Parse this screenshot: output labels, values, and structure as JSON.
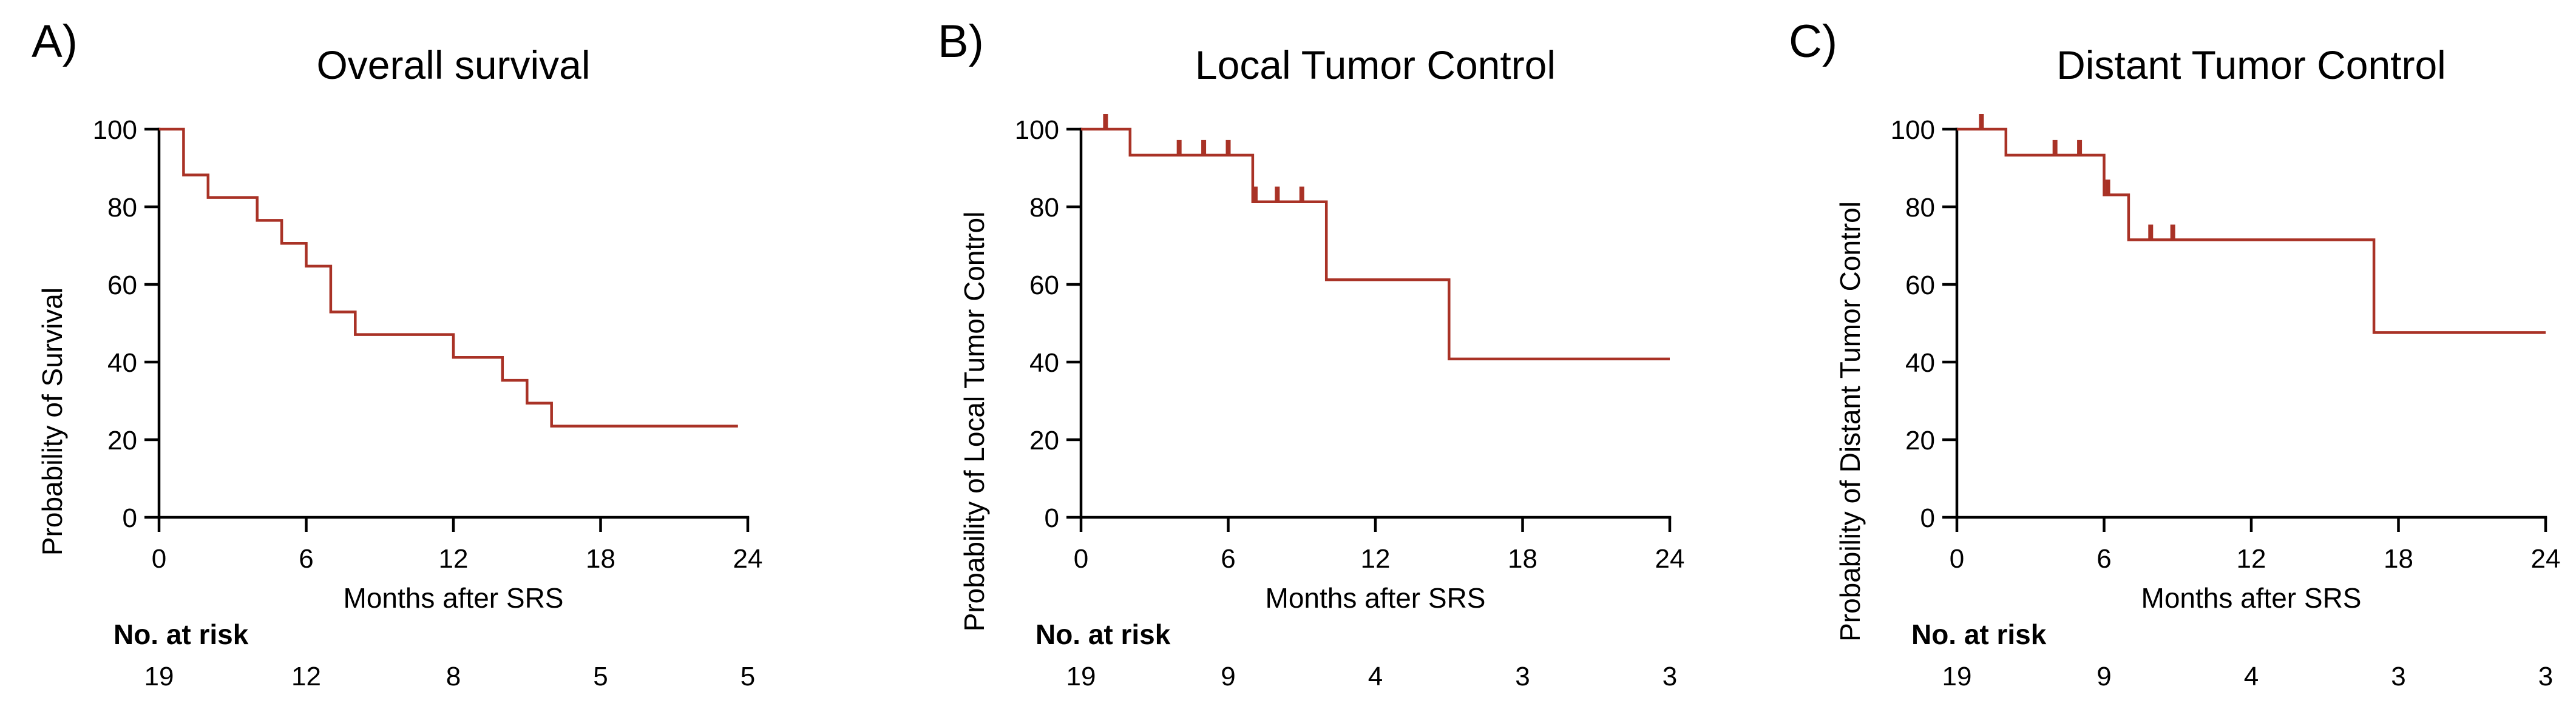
{
  "figure": {
    "description": "Three Kaplan-Meier curves after SRS",
    "curve_color": "#a93226",
    "axis_color": "#000000"
  },
  "chart_data": [
    {
      "type": "line",
      "subtype": "kaplan-meier-step",
      "panel_label": "A)",
      "title": "Overall survival",
      "xlabel": "Months after SRS",
      "ylabel": "Probability of Survival",
      "xlim": [
        0,
        24
      ],
      "ylim": [
        0,
        100
      ],
      "xticks": [
        0,
        6,
        12,
        18,
        24
      ],
      "yticks": [
        0,
        20,
        40,
        60,
        80,
        100
      ],
      "grid": false,
      "legend": "none",
      "series": [
        {
          "name": "Overall survival",
          "color": "#a93226",
          "step_vertices": [
            [
              0,
              100
            ],
            [
              1,
              100
            ],
            [
              1,
              88.2
            ],
            [
              2,
              88.2
            ],
            [
              2,
              82.4
            ],
            [
              4,
              82.4
            ],
            [
              4,
              76.5
            ],
            [
              5,
              76.5
            ],
            [
              5,
              70.6
            ],
            [
              6,
              70.6
            ],
            [
              6,
              64.7
            ],
            [
              7,
              64.7
            ],
            [
              7,
              52.9
            ],
            [
              8,
              52.9
            ],
            [
              8,
              47.1
            ],
            [
              12,
              47.1
            ],
            [
              12,
              41.2
            ],
            [
              14,
              41.2
            ],
            [
              14,
              35.3
            ],
            [
              15,
              35.3
            ],
            [
              15,
              29.4
            ],
            [
              16,
              29.4
            ],
            [
              16,
              23.5
            ],
            [
              23.6,
              23.5
            ]
          ],
          "censor_marks": []
        }
      ],
      "risk_table": {
        "label": "No. at risk",
        "times": [
          0,
          6,
          12,
          18,
          24
        ],
        "counts": [
          19,
          12,
          8,
          5,
          5
        ]
      }
    },
    {
      "type": "line",
      "subtype": "kaplan-meier-step",
      "panel_label": "B)",
      "title": "Local Tumor Control",
      "xlabel": "Months after SRS",
      "ylabel": "Probability of Local Tumor Control",
      "xlim": [
        0,
        24
      ],
      "ylim": [
        0,
        100
      ],
      "xticks": [
        0,
        6,
        12,
        18,
        24
      ],
      "yticks": [
        0,
        20,
        40,
        60,
        80,
        100
      ],
      "grid": false,
      "legend": "none",
      "series": [
        {
          "name": "Local tumor control",
          "color": "#a93226",
          "step_vertices": [
            [
              0,
              100
            ],
            [
              2,
              100
            ],
            [
              2,
              93.3
            ],
            [
              7,
              93.3
            ],
            [
              7,
              81.3
            ],
            [
              10,
              81.3
            ],
            [
              10,
              61.2
            ],
            [
              15,
              61.2
            ],
            [
              15,
              40.8
            ],
            [
              24,
              40.8
            ]
          ],
          "censor_marks": [
            [
              1,
              100
            ],
            [
              4,
              93.3
            ],
            [
              5,
              93.3
            ],
            [
              6,
              93.3
            ],
            [
              7.1,
              81.3
            ],
            [
              8,
              81.3
            ],
            [
              9,
              81.3
            ]
          ]
        }
      ],
      "risk_table": {
        "label": "No. at risk",
        "times": [
          0,
          6,
          12,
          18,
          24
        ],
        "counts": [
          19,
          9,
          4,
          3,
          3
        ]
      }
    },
    {
      "type": "line",
      "subtype": "kaplan-meier-step",
      "panel_label": "C)",
      "title": "Distant Tumor Control",
      "xlabel": "Months after SRS",
      "ylabel": "Probability of Distant Tumor Control",
      "xlim": [
        0,
        24
      ],
      "ylim": [
        0,
        100
      ],
      "xticks": [
        0,
        6,
        12,
        18,
        24
      ],
      "yticks": [
        0,
        20,
        40,
        60,
        80,
        100
      ],
      "grid": false,
      "legend": "none",
      "series": [
        {
          "name": "Distant tumor control",
          "color": "#a93226",
          "step_vertices": [
            [
              0,
              100
            ],
            [
              2,
              100
            ],
            [
              2,
              93.3
            ],
            [
              6,
              93.3
            ],
            [
              6,
              83.1
            ],
            [
              7,
              83.1
            ],
            [
              7,
              71.5
            ],
            [
              17,
              71.5
            ],
            [
              17,
              47.6
            ],
            [
              24,
              47.6
            ]
          ],
          "censor_marks": [
            [
              1,
              100
            ],
            [
              4,
              93.3
            ],
            [
              5,
              93.3
            ],
            [
              6.15,
              83.1
            ],
            [
              7.9,
              71.5
            ],
            [
              8.8,
              71.5
            ]
          ]
        }
      ],
      "risk_table": {
        "label": "No. at risk",
        "times": [
          0,
          6,
          12,
          18,
          24
        ],
        "counts": [
          19,
          9,
          4,
          3,
          3
        ]
      }
    }
  ]
}
